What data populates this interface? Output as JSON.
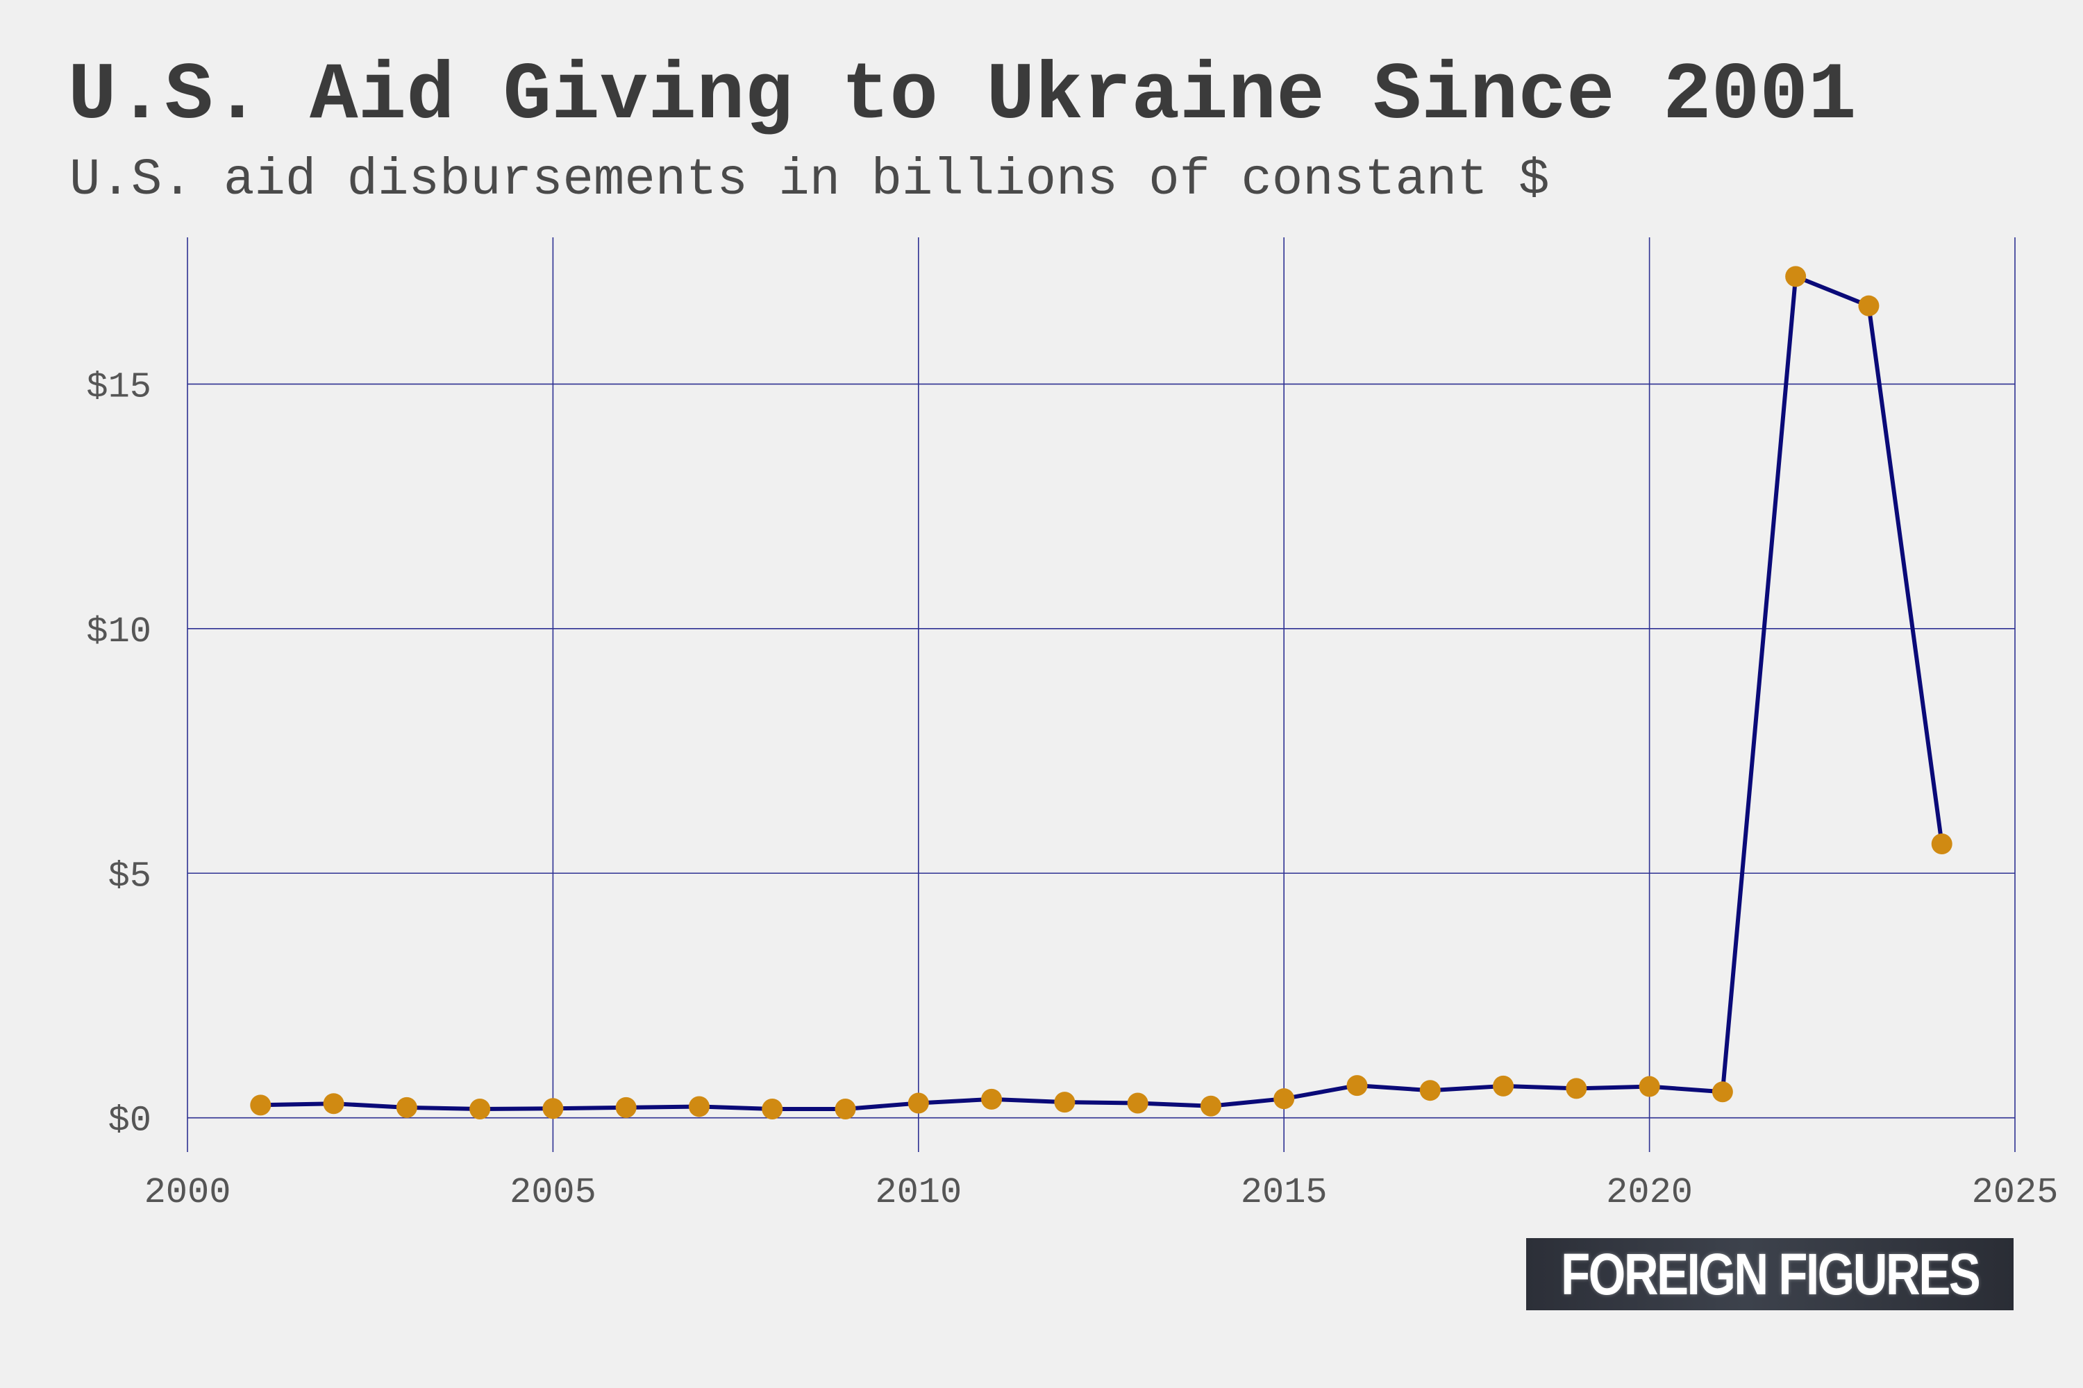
{
  "chart_data": {
    "type": "line",
    "title": "U.S. Aid Giving to Ukraine Since 2001",
    "subtitle": "U.S. aid disbursements in billions of constant $",
    "xlabel": "",
    "ylabel": "",
    "x": [
      2001,
      2002,
      2003,
      2004,
      2005,
      2006,
      2007,
      2008,
      2009,
      2010,
      2011,
      2012,
      2013,
      2014,
      2015,
      2016,
      2017,
      2018,
      2019,
      2020,
      2021,
      2022,
      2023,
      2024
    ],
    "series": [
      {
        "values": [
          0.26,
          0.29,
          0.21,
          0.18,
          0.19,
          0.21,
          0.23,
          0.18,
          0.18,
          0.3,
          0.38,
          0.32,
          0.3,
          0.24,
          0.39,
          0.66,
          0.56,
          0.65,
          0.6,
          0.64,
          0.53,
          17.2,
          16.6,
          5.6
        ]
      }
    ],
    "xlim": [
      2000,
      2025
    ],
    "ylim": [
      -0.7,
      18.0
    ],
    "x_ticks": [
      2000,
      2005,
      2010,
      2015,
      2020,
      2025
    ],
    "x_tick_labels": [
      "2000",
      "2005",
      "2010",
      "2015",
      "2020",
      "2025"
    ],
    "y_ticks": [
      0,
      5,
      10,
      15
    ],
    "y_tick_labels": [
      "$0",
      "$5",
      "$10",
      "$15"
    ],
    "grid": true,
    "colors": {
      "line": "#0a0a78",
      "marker": "#d08a12",
      "grid": "#2e3192",
      "background": "#f0f0f0"
    }
  },
  "branding": {
    "label": "FOREIGN FIGURES"
  }
}
